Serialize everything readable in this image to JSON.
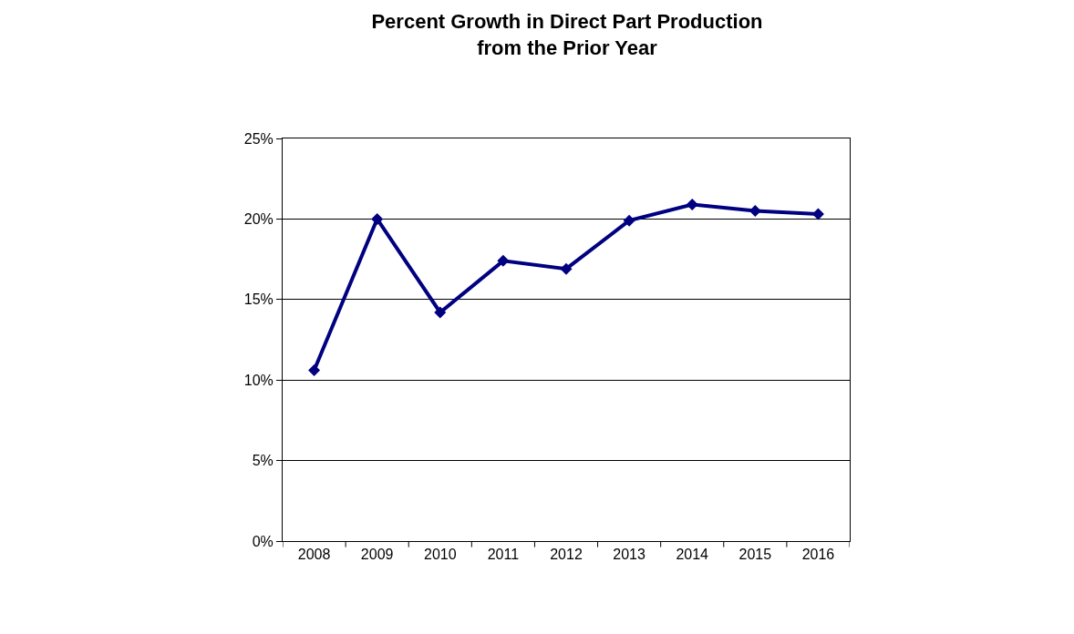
{
  "chart_data": {
    "type": "line",
    "title": "Percent Growth in Direct Part Production\nfrom the Prior Year",
    "categories": [
      "2008",
      "2009",
      "2010",
      "2011",
      "2012",
      "2013",
      "2014",
      "2015",
      "2016"
    ],
    "series": [
      {
        "color": "#000080",
        "values": [
          10.6,
          20.0,
          14.2,
          17.4,
          16.9,
          19.9,
          20.9,
          20.5,
          20.3
        ]
      }
    ],
    "ylim": [
      0,
      25
    ],
    "yticks": [
      {
        "value": 0,
        "label": "0%"
      },
      {
        "value": 5,
        "label": "5%"
      },
      {
        "value": 10,
        "label": "10%"
      },
      {
        "value": 15,
        "label": "15%"
      },
      {
        "value": 20,
        "label": "20%"
      },
      {
        "value": 25,
        "label": "25%"
      }
    ],
    "grid": "y",
    "marker": "diamond",
    "line_style": "solid"
  }
}
